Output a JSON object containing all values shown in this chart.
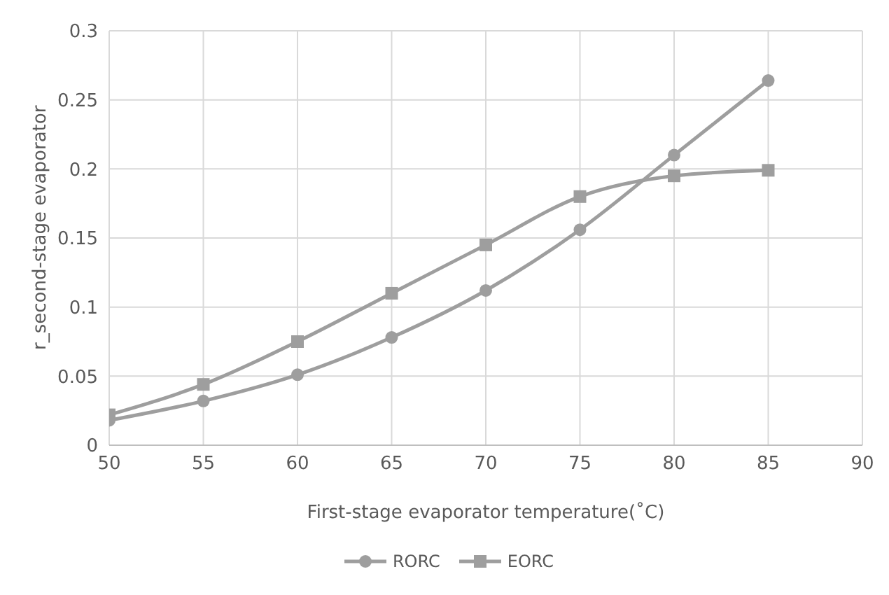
{
  "chart_data": {
    "type": "line",
    "xlabel": "First-stage evaporator temperature(˚C)",
    "ylabel": "r_second-stage evaporator",
    "x": [
      50,
      55,
      60,
      65,
      70,
      75,
      80,
      85
    ],
    "series": [
      {
        "name": "RORC",
        "color": "#9e9e9e",
        "marker": "circle",
        "values": [
          0.018,
          0.032,
          0.051,
          0.078,
          0.112,
          0.156,
          0.21,
          0.264
        ]
      },
      {
        "name": "EORC",
        "color": "#9e9e9e",
        "marker": "square",
        "values": [
          0.022,
          0.044,
          0.075,
          0.11,
          0.145,
          0.18,
          0.195,
          0.199
        ]
      }
    ],
    "xlim": [
      50,
      90
    ],
    "xticks": [
      50,
      55,
      60,
      65,
      70,
      75,
      80,
      85,
      90
    ],
    "ylim": [
      0,
      0.3
    ],
    "yticks": [
      0,
      0.05,
      0.1,
      0.15,
      0.2,
      0.25,
      0.3
    ],
    "grid": true,
    "legend": "bottom",
    "line_style": "solid"
  }
}
